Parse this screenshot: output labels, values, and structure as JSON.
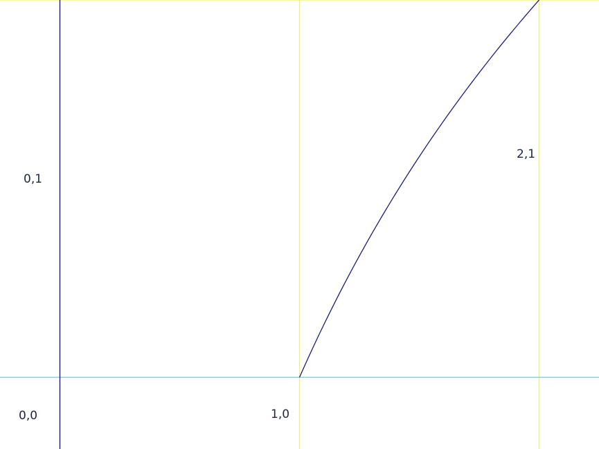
{
  "colors": {
    "background": "#ffffff",
    "y_axis": "#1e1a7e",
    "x_axis": "#66ddf3",
    "grid": "#f5ef68",
    "curve": "#1e1a7e",
    "label": "#1f2340"
  },
  "labels": {
    "origin": "0,0",
    "y_one": "0,1",
    "x_one": "1,0",
    "end_point": "2,1"
  },
  "chart_data": {
    "type": "line",
    "x_range": [
      -0.25,
      2.25
    ],
    "y_range": [
      -0.19,
      1.0
    ],
    "grid_x": [
      1,
      2
    ],
    "grid_y": [
      1
    ],
    "series": [
      {
        "x": [
          1.0,
          1.25,
          1.5,
          1.75,
          2.0
        ],
        "y": [
          0.0,
          0.3219,
          0.585,
          0.8074,
          1.0
        ]
      }
    ]
  }
}
